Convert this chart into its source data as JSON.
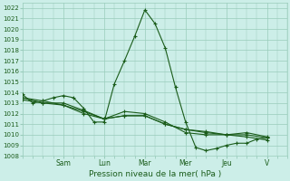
{
  "title": "Pression niveau de la mer( hPa )",
  "bg_color": "#cceee8",
  "grid_color": "#99ccbb",
  "line_color": "#1a5c1a",
  "ylim": [
    1008,
    1022.5
  ],
  "yticks": [
    1008,
    1009,
    1010,
    1011,
    1012,
    1013,
    1014,
    1015,
    1016,
    1017,
    1018,
    1019,
    1020,
    1021,
    1022
  ],
  "day_labels": [
    "Sam",
    "Lun",
    "Mar",
    "Mer",
    "Jeu",
    "V"
  ],
  "day_positions": [
    2,
    4,
    6,
    8,
    10,
    12
  ],
  "xlim": [
    0,
    13
  ],
  "series1_x": [
    0,
    0.5,
    1,
    1.5,
    2,
    2.5,
    3,
    3.5,
    4,
    4.5,
    5,
    5.5,
    6,
    6.5,
    7,
    7.5,
    8,
    8.5,
    9,
    9.5,
    10,
    10.5,
    11,
    11.5,
    12
  ],
  "series1_y": [
    1013.8,
    1013.0,
    1013.2,
    1013.5,
    1013.7,
    1013.5,
    1012.5,
    1011.2,
    1011.2,
    1014.8,
    1017.0,
    1019.3,
    1021.8,
    1020.5,
    1018.2,
    1014.5,
    1011.2,
    1008.8,
    1008.5,
    1008.7,
    1009.0,
    1009.2,
    1009.2,
    1009.6,
    1009.7
  ],
  "series2_x": [
    0,
    1,
    2,
    3,
    4,
    5,
    6,
    7,
    8,
    9,
    10,
    11,
    12
  ],
  "series2_y": [
    1013.5,
    1013.0,
    1013.0,
    1012.3,
    1011.5,
    1012.2,
    1012.0,
    1011.2,
    1010.2,
    1010.0,
    1010.0,
    1010.2,
    1009.8
  ],
  "series3_x": [
    0,
    1,
    2,
    3,
    4,
    5,
    6,
    7,
    8,
    9,
    10,
    11,
    12
  ],
  "series3_y": [
    1013.5,
    1013.2,
    1012.8,
    1012.0,
    1011.5,
    1011.8,
    1011.8,
    1011.0,
    1010.5,
    1010.2,
    1010.0,
    1009.8,
    1009.5
  ],
  "series4_x": [
    0,
    1,
    2,
    3,
    4,
    5,
    6,
    7,
    8,
    9,
    10,
    11,
    12
  ],
  "series4_y": [
    1013.3,
    1013.0,
    1012.8,
    1012.2,
    1011.5,
    1011.8,
    1011.8,
    1011.0,
    1010.5,
    1010.3,
    1010.0,
    1010.0,
    1009.7
  ]
}
